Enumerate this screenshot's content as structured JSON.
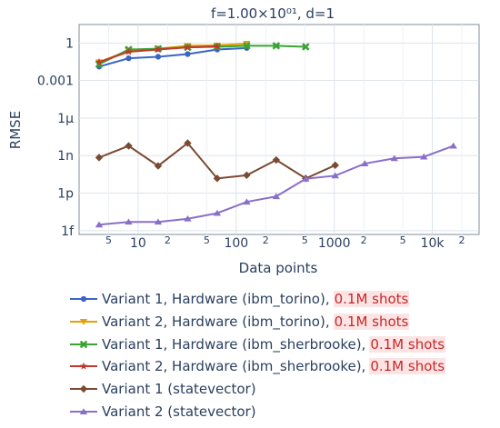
{
  "chart_data": {
    "type": "line",
    "title": "f=1.00×10⁰¹, d=1",
    "xlabel": "Data points",
    "ylabel": "RMSE",
    "x_scale": "log",
    "y_scale": "log",
    "xlim": [
      2.5,
      30000
    ],
    "ylim": [
      5e-16,
      30
    ],
    "grid": true,
    "legend_position": "bottom",
    "y_ticks": [
      {
        "value": 1,
        "label": "1"
      },
      {
        "value": 0.001,
        "label": "0.001"
      },
      {
        "value": 1e-06,
        "label": "1μ"
      },
      {
        "value": 1e-09,
        "label": "1n"
      },
      {
        "value": 1e-12,
        "label": "1p"
      },
      {
        "value": 1e-15,
        "label": "1f"
      }
    ],
    "x_major_ticks": [
      {
        "value": 10,
        "label": "10"
      },
      {
        "value": 100,
        "label": "100"
      },
      {
        "value": 1000,
        "label": "1000"
      },
      {
        "value": 10000,
        "label": "10k"
      }
    ],
    "x_minor_ticks": [
      {
        "value": 5,
        "label": "5"
      },
      {
        "value": 20,
        "label": "2"
      },
      {
        "value": 50,
        "label": "5"
      },
      {
        "value": 200,
        "label": "2"
      },
      {
        "value": 500,
        "label": "5"
      },
      {
        "value": 2000,
        "label": "2"
      },
      {
        "value": 5000,
        "label": "5"
      },
      {
        "value": 20000,
        "label": "2"
      }
    ],
    "series": [
      {
        "name": "Variant 1, Hardware (ibm_torino),",
        "shots": "0.1M shots",
        "color": "#3b64c4",
        "marker": "circle",
        "x": [
          4,
          8,
          16,
          32,
          64,
          128
        ],
        "y": [
          0.013,
          0.06,
          0.08,
          0.13,
          0.3,
          0.4
        ]
      },
      {
        "name": "Variant 2, Hardware (ibm_torino),",
        "shots": "0.1M shots",
        "color": "#e5a100",
        "marker": "triangle-down",
        "x": [
          4,
          8,
          16,
          32,
          64,
          128
        ],
        "y": [
          0.03,
          0.25,
          0.35,
          0.6,
          0.65,
          0.9
        ]
      },
      {
        "name": "Variant 1, Hardware (ibm_sherbrooke),",
        "shots": "0.1M shots",
        "color": "#3aa336",
        "marker": "x",
        "x": [
          4,
          8,
          16,
          32,
          64,
          128,
          256,
          512
        ],
        "y": [
          0.02,
          0.3,
          0.35,
          0.45,
          0.5,
          0.6,
          0.6,
          0.5
        ]
      },
      {
        "name": "Variant 2, Hardware (ibm_sherbrooke),",
        "shots": "0.1M shots",
        "color": "#c0392b",
        "marker": "star",
        "x": [
          4,
          8,
          16,
          32,
          64
        ],
        "y": [
          0.03,
          0.2,
          0.3,
          0.45,
          0.55
        ]
      },
      {
        "name": "Variant 1 (statevector)",
        "shots": "",
        "color": "#7b4a32",
        "marker": "diamond",
        "x": [
          4,
          8,
          16,
          32,
          64,
          128,
          256,
          512,
          1024
        ],
        "y": [
          7e-10,
          6e-09,
          1.5e-10,
          1e-08,
          1.5e-11,
          2.7e-11,
          4.5e-10,
          1.5e-11,
          1.7e-10
        ]
      },
      {
        "name": "Variant 2 (statevector)",
        "shots": "",
        "color": "#8a6fc9",
        "marker": "triangle-up",
        "x": [
          4,
          8,
          16,
          32,
          64,
          128,
          256,
          512,
          1024,
          2048,
          4096,
          8192,
          16384
        ],
        "y": [
          3e-15,
          5e-15,
          5e-15,
          9e-15,
          2.5e-14,
          2e-13,
          5.5e-13,
          1.4e-11,
          2.5e-11,
          2.3e-10,
          6e-10,
          8e-10,
          6e-09
        ]
      }
    ]
  }
}
